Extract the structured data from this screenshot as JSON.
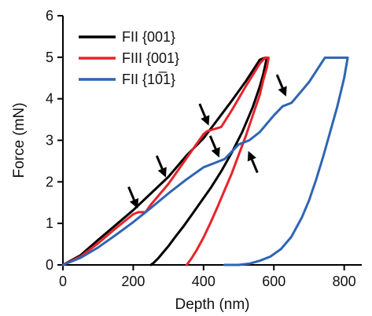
{
  "chart_data": {
    "type": "line",
    "title": "",
    "xlabel": "Depth (nm)",
    "ylabel": "Force (mN)",
    "xlim": [
      0,
      850
    ],
    "ylim": [
      0,
      6
    ],
    "xticks": [
      0,
      200,
      400,
      600,
      800
    ],
    "yticks": [
      0,
      1,
      2,
      3,
      4,
      5,
      6
    ],
    "xtick_labels": [
      "0",
      "200",
      "400",
      "600",
      "800"
    ],
    "ytick_labels": [
      "0",
      "1",
      "2",
      "3",
      "4",
      "5",
      "6"
    ],
    "legend_position": "top-left",
    "grid": false,
    "series": [
      {
        "name": "FII {001}",
        "color": "#000000",
        "x": [
          0,
          50,
          100,
          150,
          200,
          250,
          300,
          350,
          400,
          440,
          480,
          520,
          560,
          575,
          580,
          570,
          560,
          540,
          510,
          480,
          450,
          420,
          395,
          370,
          345,
          320,
          300,
          285,
          270,
          258,
          250
        ],
        "y": [
          0,
          0.23,
          0.6,
          0.96,
          1.32,
          1.72,
          2.12,
          2.62,
          3.05,
          3.5,
          3.95,
          4.42,
          4.94,
          4.99,
          4.99,
          4.6,
          4.3,
          3.8,
          3.2,
          2.7,
          2.25,
          1.85,
          1.55,
          1.25,
          0.95,
          0.68,
          0.45,
          0.3,
          0.15,
          0.05,
          0
        ]
      },
      {
        "name": "FIII {001}",
        "color": "#e8232a",
        "x": [
          0,
          50,
          100,
          150,
          200,
          215,
          235,
          250,
          300,
          350,
          400,
          410,
          450,
          480,
          520,
          560,
          575,
          585,
          580,
          570,
          560,
          540,
          520,
          500,
          480,
          460,
          440,
          420,
          400,
          380,
          365,
          352
        ],
        "y": [
          0,
          0.2,
          0.52,
          0.88,
          1.22,
          1.27,
          1.27,
          1.45,
          1.95,
          2.55,
          3.15,
          3.22,
          3.32,
          3.72,
          4.3,
          4.85,
          4.99,
          4.99,
          4.75,
          4.45,
          4.1,
          3.6,
          3.1,
          2.65,
          2.2,
          1.8,
          1.4,
          1.02,
          0.66,
          0.35,
          0.15,
          0
        ]
      },
      {
        "name": "FII {10̅1}",
        "color": "#2f65b4",
        "x": [
          0,
          50,
          100,
          150,
          200,
          250,
          300,
          350,
          400,
          430,
          460,
          500,
          530,
          560,
          600,
          625,
          650,
          700,
          745,
          810,
          800,
          780,
          760,
          740,
          720,
          700,
          680,
          650,
          620,
          590,
          560,
          530,
          500,
          480,
          460
        ],
        "y": [
          0,
          0.17,
          0.42,
          0.72,
          1.03,
          1.37,
          1.72,
          2.05,
          2.35,
          2.45,
          2.55,
          2.9,
          3.0,
          3.2,
          3.6,
          3.82,
          3.9,
          4.4,
          4.99,
          4.99,
          4.5,
          3.8,
          3.2,
          2.6,
          2.05,
          1.55,
          1.15,
          0.68,
          0.38,
          0.2,
          0.1,
          0.03,
          0,
          0,
          0
        ]
      }
    ],
    "annotations": [
      {
        "type": "arrow",
        "target": [
          218,
          1.25
        ],
        "direction": "down-right"
      },
      {
        "type": "arrow",
        "target": [
          298,
          2.0
        ],
        "direction": "down-right"
      },
      {
        "type": "arrow",
        "target": [
          420,
          3.25
        ],
        "direction": "down-right"
      },
      {
        "type": "arrow",
        "target": [
          450,
          2.48
        ],
        "direction": "down-right"
      },
      {
        "type": "arrow",
        "target": [
          522,
          2.85
        ],
        "direction": "up-left"
      },
      {
        "type": "arrow",
        "target": [
          640,
          3.95
        ],
        "direction": "down-right"
      }
    ]
  }
}
